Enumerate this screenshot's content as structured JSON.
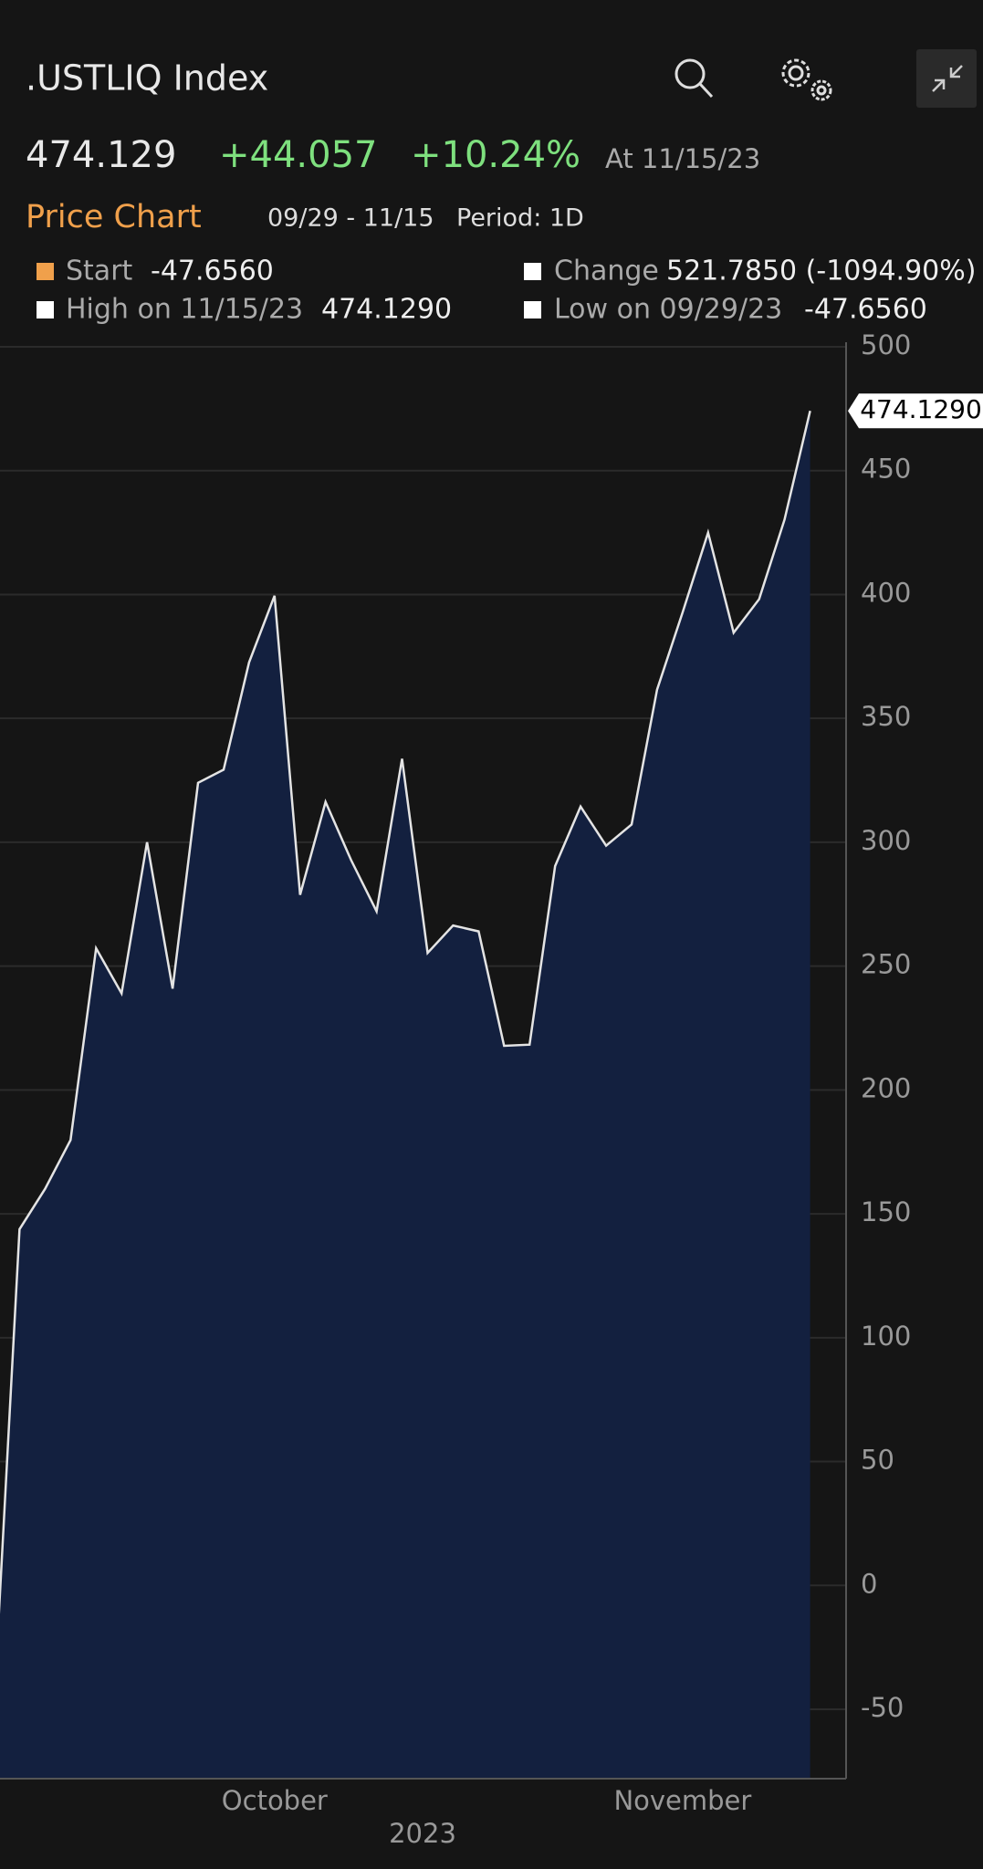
{
  "header": {
    "title": ".USTLIQ Index",
    "price": "474.129",
    "change": "+44.057",
    "change_pct": "+10.24%",
    "as_of": "At 11/15/23"
  },
  "toolbar": {
    "tab": "Price Chart",
    "range": "09/29 - 11/15",
    "period": "Period: 1D"
  },
  "legend": [
    {
      "label": "Start",
      "value": "-47.6560"
    },
    {
      "label": "Change",
      "value": "521.7850 (-1094.90%)"
    },
    {
      "label": "High on 11/15/23",
      "value": "474.1290"
    },
    {
      "label": "Low on 09/29/23",
      "value": "-47.6560"
    }
  ],
  "chart_data": {
    "type": "area",
    "categories": [
      null,
      null,
      null,
      null,
      null,
      null,
      null,
      null,
      null,
      null,
      null,
      "October",
      null,
      null,
      null,
      null,
      null,
      null,
      null,
      null,
      null,
      null,
      null,
      null,
      null,
      null,
      null,
      "November",
      null,
      null,
      null,
      null,
      null
    ],
    "xlabel": "2023",
    "values": [
      -47.656,
      143.8,
      160.1,
      179.8,
      257.2,
      239.0,
      300.0,
      240.9,
      324.0,
      329.3,
      372.6,
      399.5,
      278.8,
      316.3,
      292.8,
      272.1,
      333.7,
      255.3,
      266.4,
      264.0,
      217.8,
      218.3,
      290.4,
      314.4,
      298.6,
      307.2,
      361.6,
      392.8,
      425.0,
      384.6,
      398.1,
      430.3,
      474.129
    ],
    "value_labels": [
      null,
      null,
      null,
      null,
      null,
      null,
      null,
      null,
      null,
      null,
      null,
      null,
      null,
      null,
      null,
      null,
      null,
      null,
      null,
      null,
      null,
      null,
      null,
      null,
      null,
      null,
      null,
      null,
      null,
      null,
      null,
      null,
      "474.1290"
    ],
    "color": "#e4e4e4",
    "fill": "#13203f",
    "ylim": [
      -78,
      500
    ],
    "yticks": [
      -50,
      0,
      50,
      100,
      150,
      200,
      250,
      300,
      350,
      400,
      450,
      500
    ],
    "grid": true
  }
}
